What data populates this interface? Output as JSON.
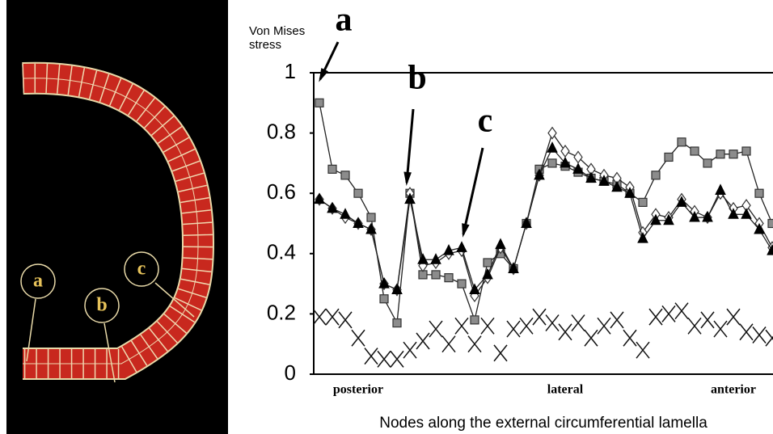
{
  "figure": {
    "mesh_labels": [
      "a",
      "b",
      "c"
    ]
  },
  "chart_data": {
    "type": "line",
    "y_label": "Von Mises stress",
    "x_label": "Nodes along the external circumferential lamella",
    "annotations": [
      "a",
      "b",
      "c"
    ],
    "categories": [
      null,
      null,
      null,
      "posterior",
      null,
      null,
      null,
      null,
      null,
      null,
      null,
      null,
      null,
      null,
      null,
      null,
      null,
      null,
      null,
      "lateral",
      null,
      null,
      null,
      null,
      null,
      null,
      null,
      null,
      null,
      null,
      null,
      null,
      "anterior",
      null,
      null,
      null
    ],
    "ylim": [
      0,
      1
    ],
    "yticks": [
      0,
      0.2,
      0.4,
      0.6,
      0.8,
      1
    ],
    "series": [
      {
        "marker": "x",
        "color": "#111111",
        "values": [
          0.19,
          0.19,
          0.18,
          0.12,
          0.06,
          0.05,
          0.05,
          0.08,
          0.11,
          0.15,
          0.1,
          0.16,
          0.1,
          0.16,
          0.07,
          0.15,
          0.16,
          0.19,
          0.17,
          0.14,
          0.17,
          0.12,
          0.16,
          0.18,
          0.12,
          0.08,
          0.19,
          0.2,
          0.21,
          0.16,
          0.18,
          0.15,
          0.19,
          0.14,
          0.13,
          0.12
        ]
      },
      {
        "marker": "square",
        "color": "#8c8c8c",
        "values": [
          0.9,
          0.68,
          0.66,
          0.6,
          0.52,
          0.25,
          0.17,
          0.6,
          0.33,
          0.33,
          0.32,
          0.3,
          0.18,
          0.37,
          0.4,
          0.35,
          0.5,
          0.68,
          0.7,
          0.69,
          0.67,
          0.65,
          0.64,
          0.63,
          0.6,
          0.57,
          0.66,
          0.72,
          0.77,
          0.74,
          0.7,
          0.73,
          0.73,
          0.74,
          0.6,
          0.5
        ]
      },
      {
        "marker": "diamond",
        "color": "#ffffff",
        "values": [
          0.58,
          0.55,
          0.52,
          0.5,
          0.48,
          0.3,
          0.28,
          0.6,
          0.36,
          0.37,
          0.4,
          0.41,
          0.26,
          0.32,
          0.42,
          0.35,
          0.5,
          0.66,
          0.8,
          0.74,
          0.72,
          0.68,
          0.66,
          0.65,
          0.62,
          0.47,
          0.53,
          0.52,
          0.58,
          0.54,
          0.52,
          0.6,
          0.55,
          0.56,
          0.5,
          0.42
        ]
      },
      {
        "marker": "triangle",
        "color": "#000000",
        "values": [
          0.58,
          0.55,
          0.53,
          0.5,
          0.48,
          0.3,
          0.28,
          0.58,
          0.38,
          0.38,
          0.41,
          0.42,
          0.28,
          0.33,
          0.43,
          0.35,
          0.5,
          0.66,
          0.75,
          0.7,
          0.68,
          0.65,
          0.64,
          0.62,
          0.6,
          0.45,
          0.51,
          0.51,
          0.57,
          0.52,
          0.52,
          0.61,
          0.53,
          0.53,
          0.48,
          0.41
        ]
      }
    ]
  }
}
